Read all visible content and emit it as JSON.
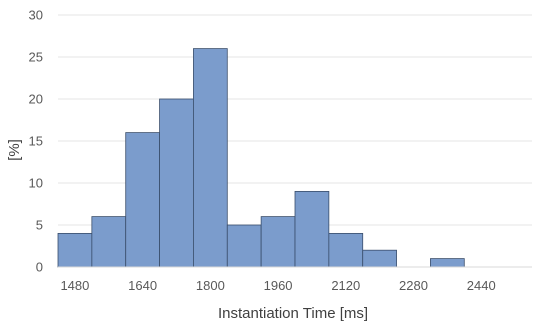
{
  "chart_data": {
    "type": "bar",
    "subtype": "histogram",
    "title": "",
    "xlabel": "Instantiation Time [ms]",
    "ylabel": "[%]",
    "bin_width": 80,
    "bins": [
      {
        "start": 1440,
        "end": 1520,
        "value": 4
      },
      {
        "start": 1520,
        "end": 1600,
        "value": 6
      },
      {
        "start": 1600,
        "end": 1680,
        "value": 16
      },
      {
        "start": 1680,
        "end": 1760,
        "value": 20
      },
      {
        "start": 1760,
        "end": 1840,
        "value": 26
      },
      {
        "start": 1840,
        "end": 1920,
        "value": 5
      },
      {
        "start": 1920,
        "end": 2000,
        "value": 6
      },
      {
        "start": 2000,
        "end": 2080,
        "value": 9
      },
      {
        "start": 2080,
        "end": 2160,
        "value": 4
      },
      {
        "start": 2160,
        "end": 2240,
        "value": 2
      },
      {
        "start": 2240,
        "end": 2320,
        "value": 0
      },
      {
        "start": 2320,
        "end": 2400,
        "value": 1
      },
      {
        "start": 2400,
        "end": 2480,
        "value": 0
      },
      {
        "start": 2480,
        "end": 2560,
        "value": 0
      }
    ],
    "xlim": [
      1440,
      2560
    ],
    "ylim": [
      0,
      30
    ],
    "x_ticks": [
      "1480",
      "1640",
      "1800",
      "1960",
      "2120",
      "2280",
      "2440"
    ],
    "x_tick_values": [
      1480,
      1640,
      1800,
      1960,
      2120,
      2280,
      2440
    ],
    "y_ticks": [
      "0",
      "5",
      "10",
      "15",
      "20",
      "25",
      "30"
    ],
    "y_tick_values": [
      0,
      5,
      10,
      15,
      20,
      25,
      30
    ],
    "grid": true,
    "legend": "none",
    "bar_color": "#7b9ccc",
    "bar_edge_color": "#3a4e6b"
  }
}
